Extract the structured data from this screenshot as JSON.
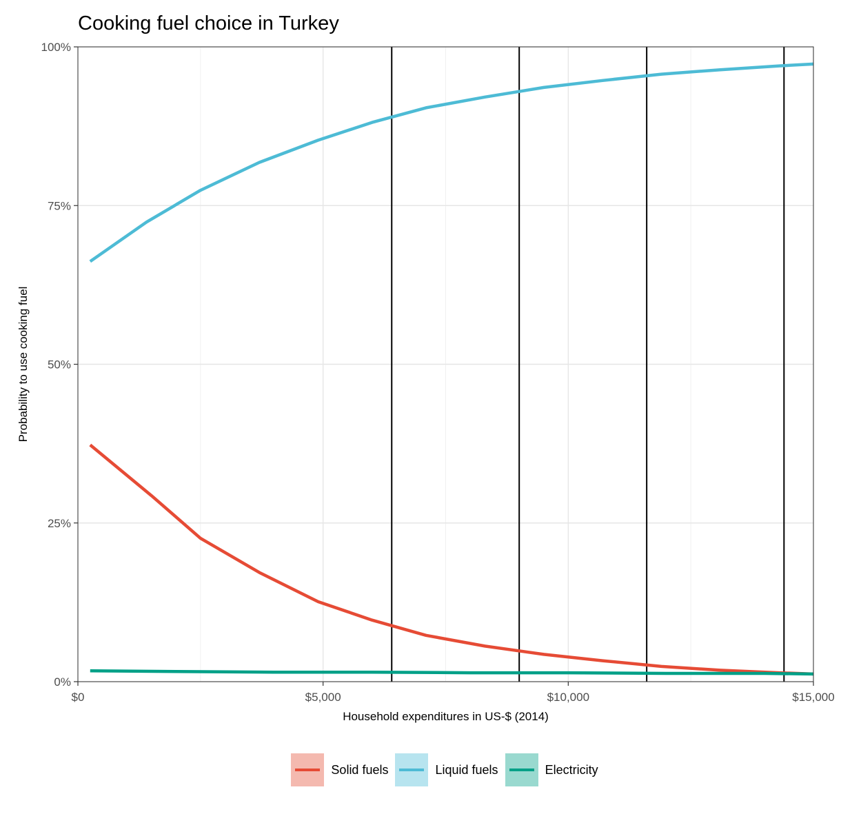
{
  "chart_data": {
    "type": "line",
    "title": "Cooking fuel choice in Turkey",
    "xlabel": "Household expenditures in US-$ (2014)",
    "ylabel": "Probability to use cooking fuel",
    "xlim": [
      0,
      15000
    ],
    "ylim": [
      0,
      1
    ],
    "x_ticks": [
      0,
      5000,
      10000,
      15000
    ],
    "x_tick_labels": [
      "$0",
      "$5,000",
      "$10,000",
      "$15,000"
    ],
    "y_ticks": [
      0,
      0.25,
      0.5,
      0.75,
      1
    ],
    "y_tick_labels": [
      "0%",
      "25%",
      "50%",
      "75%",
      "100%"
    ],
    "grid": true,
    "legend_position": "bottom",
    "vertical_lines": [
      6400,
      9000,
      11600,
      14400
    ],
    "series": [
      {
        "name": "Solid fuels",
        "color": "#E64B35",
        "legend_fill": "#F4B9AF",
        "points": [
          [
            250,
            0.373
          ],
          [
            1500,
            0.293
          ],
          [
            2500,
            0.226
          ],
          [
            3700,
            0.172
          ],
          [
            4900,
            0.126
          ],
          [
            6000,
            0.097
          ],
          [
            7100,
            0.073
          ],
          [
            8300,
            0.056
          ],
          [
            9500,
            0.043
          ],
          [
            10700,
            0.033
          ],
          [
            11900,
            0.024
          ],
          [
            13100,
            0.018
          ],
          [
            14300,
            0.014
          ],
          [
            15000,
            0.012
          ]
        ]
      },
      {
        "name": "Liquid fuels",
        "color": "#4DBBD5",
        "legend_fill": "#B7E4EF",
        "points": [
          [
            250,
            0.662
          ],
          [
            1400,
            0.724
          ],
          [
            2500,
            0.774
          ],
          [
            3700,
            0.818
          ],
          [
            4900,
            0.853
          ],
          [
            6000,
            0.881
          ],
          [
            7100,
            0.904
          ],
          [
            8300,
            0.921
          ],
          [
            9500,
            0.936
          ],
          [
            10700,
            0.947
          ],
          [
            11900,
            0.957
          ],
          [
            13100,
            0.964
          ],
          [
            14300,
            0.97
          ],
          [
            15000,
            0.973
          ]
        ]
      },
      {
        "name": "Electricity",
        "color": "#00A087",
        "legend_fill": "#99D9CF",
        "points": [
          [
            250,
            0.017
          ],
          [
            2000,
            0.016
          ],
          [
            4000,
            0.015
          ],
          [
            6000,
            0.015
          ],
          [
            8000,
            0.014
          ],
          [
            10000,
            0.014
          ],
          [
            12000,
            0.013
          ],
          [
            14000,
            0.013
          ],
          [
            15000,
            0.012
          ]
        ]
      }
    ]
  }
}
